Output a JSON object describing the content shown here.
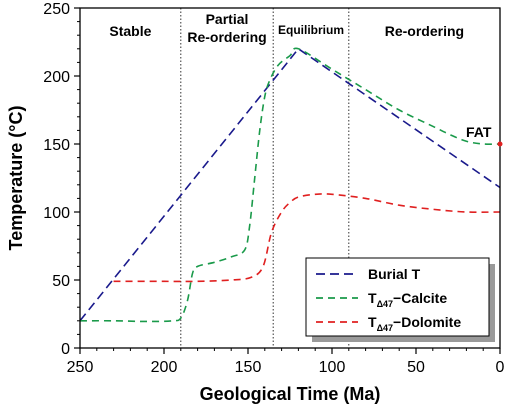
{
  "chart_data": {
    "type": "line",
    "xlabel": "Geological Time (Ma)",
    "ylabel": "Temperature (°C)",
    "xlim": [
      250,
      0
    ],
    "ylim": [
      0,
      250
    ],
    "x_reversed": true,
    "xticks": [
      250,
      200,
      150,
      100,
      50,
      0
    ],
    "yticks": [
      0,
      50,
      100,
      150,
      200,
      250
    ],
    "regions": [
      {
        "label": "Stable",
        "x_start": 250,
        "x_end": 190
      },
      {
        "label": "Partial\nRe-ordering",
        "x_start": 190,
        "x_end": 135
      },
      {
        "label": "Equilibrium",
        "x_start": 135,
        "x_end": 90
      },
      {
        "label": "Re-ordering",
        "x_start": 90,
        "x_end": 0
      }
    ],
    "dividers": [
      190,
      135,
      90
    ],
    "annotations": [
      {
        "text": "FAT",
        "x": 0,
        "y": 150
      }
    ],
    "legend_position": "lower-right",
    "series": [
      {
        "name": "Burial T",
        "color": "#1a1a8c",
        "dash": "long-dash",
        "points": [
          [
            250,
            20
          ],
          [
            120,
            220
          ],
          [
            0,
            118
          ]
        ]
      },
      {
        "name": "TΔ47−Calcite",
        "color": "#1a9a4a",
        "dash": "dash",
        "points": [
          [
            250,
            20
          ],
          [
            230,
            20
          ],
          [
            210,
            19.5
          ],
          [
            195,
            20
          ],
          [
            190,
            22
          ],
          [
            186,
            35
          ],
          [
            183,
            55
          ],
          [
            180,
            60
          ],
          [
            170,
            63
          ],
          [
            160,
            67
          ],
          [
            152,
            72
          ],
          [
            149,
            90
          ],
          [
            146,
            125
          ],
          [
            143,
            160
          ],
          [
            140,
            185
          ],
          [
            137,
            197
          ],
          [
            132,
            208
          ],
          [
            125,
            215
          ],
          [
            120,
            220
          ],
          [
            100,
            205
          ],
          [
            80,
            190
          ],
          [
            60,
            175
          ],
          [
            40,
            163
          ],
          [
            30,
            157
          ],
          [
            20,
            152
          ],
          [
            10,
            150
          ],
          [
            0,
            150
          ]
        ]
      },
      {
        "name": "TΔ47−Dolomite",
        "color": "#e02020",
        "dash": "dash",
        "points": [
          [
            230,
            49
          ],
          [
            200,
            49
          ],
          [
            180,
            49
          ],
          [
            160,
            50
          ],
          [
            148,
            52
          ],
          [
            141,
            60
          ],
          [
            136,
            85
          ],
          [
            130,
            100
          ],
          [
            125,
            107
          ],
          [
            120,
            111
          ],
          [
            110,
            113
          ],
          [
            100,
            113
          ],
          [
            80,
            110
          ],
          [
            60,
            105
          ],
          [
            40,
            102
          ],
          [
            20,
            100
          ],
          [
            0,
            100
          ]
        ]
      }
    ]
  }
}
